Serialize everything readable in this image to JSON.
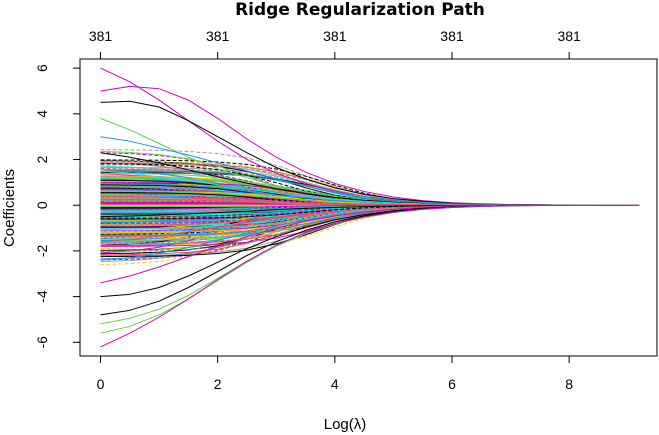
{
  "chart_data": {
    "type": "line",
    "title": "Ridge Regularization Path",
    "xlabel": "Log(λ)",
    "ylabel": "Coefficients",
    "xlim": [
      -0.35,
      9.5
    ],
    "ylim": [
      -6.6,
      6.4
    ],
    "x_ticks": [
      0,
      2,
      4,
      6,
      8
    ],
    "x_tick_labels": [
      "0",
      "2",
      "4",
      "6",
      "8"
    ],
    "y_ticks": [
      -6,
      -4,
      -2,
      0,
      2,
      4,
      6
    ],
    "y_tick_labels": [
      "-6",
      "-4",
      "-2",
      "0",
      "2",
      "4",
      "6"
    ],
    "top_axis_ticks": [
      0,
      2,
      4,
      6,
      8
    ],
    "top_axis_labels": [
      "381",
      "381",
      "381",
      "381",
      "381"
    ],
    "x": [
      0.0,
      0.5,
      1.0,
      1.5,
      2.0,
      2.5,
      3.0,
      3.5,
      4.0,
      4.5,
      5.0,
      5.5,
      6.0,
      6.5,
      7.0,
      7.5,
      8.0,
      8.5,
      9.2
    ],
    "series_count": 381,
    "series_colors": [
      "#000000",
      "#df536b",
      "#61d04f",
      "#2297e6",
      "#28e2e5",
      "#cd0bbc",
      "#f5c710",
      "#9e9e9e"
    ],
    "series": [
      {
        "values": [
          6.0,
          5.4,
          4.6,
          3.7,
          2.8,
          2.0,
          1.4,
          0.95,
          0.62,
          0.38,
          0.22,
          0.12,
          0.06,
          0.03,
          0.015,
          0.008,
          0.004,
          0.002,
          0.0
        ],
        "color": "#cd0bbc"
      },
      {
        "values": [
          5.0,
          5.2,
          5.1,
          4.6,
          3.8,
          2.9,
          2.1,
          1.45,
          0.95,
          0.6,
          0.36,
          0.2,
          0.11,
          0.06,
          0.03,
          0.015,
          0.007,
          0.003,
          0.0
        ],
        "color": "#cd0bbc"
      },
      {
        "values": [
          4.5,
          4.55,
          4.3,
          3.7,
          3.0,
          2.3,
          1.65,
          1.15,
          0.76,
          0.48,
          0.29,
          0.17,
          0.09,
          0.05,
          0.025,
          0.012,
          0.006,
          0.003,
          0.0
        ],
        "color": "#000000"
      },
      {
        "values": [
          3.8,
          3.3,
          2.7,
          2.1,
          1.6,
          1.2,
          0.85,
          0.58,
          0.38,
          0.24,
          0.14,
          0.08,
          0.045,
          0.024,
          0.012,
          0.006,
          0.003,
          0.001,
          0.0
        ],
        "color": "#61d04f"
      },
      {
        "values": [
          3.0,
          2.8,
          2.5,
          2.2,
          1.85,
          1.5,
          1.15,
          0.84,
          0.58,
          0.38,
          0.23,
          0.13,
          0.07,
          0.038,
          0.02,
          0.01,
          0.005,
          0.002,
          0.0
        ],
        "color": "#2297e6"
      },
      {
        "values": [
          2.3,
          2.1,
          1.85,
          1.55,
          1.25,
          0.97,
          0.72,
          0.51,
          0.34,
          0.22,
          0.13,
          0.075,
          0.04,
          0.021,
          0.011,
          0.005,
          0.002,
          0.001,
          0.0
        ],
        "color": "#000000"
      },
      {
        "values": [
          1.5,
          1.4,
          1.25,
          1.08,
          0.9,
          0.71,
          0.53,
          0.38,
          0.26,
          0.17,
          0.1,
          0.058,
          0.032,
          0.017,
          0.009,
          0.004,
          0.002,
          0.001,
          0.0
        ],
        "color": "#28e2e5"
      },
      {
        "values": [
          0.4,
          0.38,
          0.35,
          0.31,
          0.26,
          0.21,
          0.16,
          0.11,
          0.078,
          0.05,
          0.03,
          0.018,
          0.01,
          0.005,
          0.003,
          0.001,
          0.0,
          0.0,
          0.0
        ],
        "color": "#df536b"
      },
      {
        "values": [
          -0.5,
          -0.47,
          -0.43,
          -0.38,
          -0.32,
          -0.26,
          -0.19,
          -0.14,
          -0.095,
          -0.062,
          -0.038,
          -0.022,
          -0.012,
          -0.006,
          -0.003,
          -0.001,
          0.0,
          0.0,
          0.0
        ],
        "color": "#000000"
      },
      {
        "values": [
          -1.6,
          -1.5,
          -1.35,
          -1.17,
          -0.97,
          -0.76,
          -0.57,
          -0.41,
          -0.28,
          -0.18,
          -0.11,
          -0.063,
          -0.035,
          -0.018,
          -0.009,
          -0.004,
          -0.002,
          -0.001,
          0.0
        ],
        "color": "#df536b"
      },
      {
        "values": [
          -2.4,
          -2.3,
          -2.1,
          -1.85,
          -1.55,
          -1.22,
          -0.91,
          -0.65,
          -0.44,
          -0.28,
          -0.17,
          -0.098,
          -0.054,
          -0.029,
          -0.015,
          -0.007,
          -0.003,
          -0.001,
          0.0
        ],
        "color": "#2297e6"
      },
      {
        "values": [
          -3.4,
          -3.1,
          -2.7,
          -2.25,
          -1.8,
          -1.38,
          -1.0,
          -0.7,
          -0.47,
          -0.3,
          -0.18,
          -0.104,
          -0.057,
          -0.03,
          -0.015,
          -0.007,
          -0.003,
          -0.001,
          0.0
        ],
        "color": "#cd0bbc"
      },
      {
        "values": [
          -4.0,
          -3.9,
          -3.6,
          -3.1,
          -2.5,
          -1.9,
          -1.38,
          -0.96,
          -0.64,
          -0.41,
          -0.25,
          -0.14,
          -0.078,
          -0.041,
          -0.02,
          -0.01,
          -0.004,
          -0.002,
          0.0
        ],
        "color": "#000000"
      },
      {
        "values": [
          -4.8,
          -4.6,
          -4.2,
          -3.6,
          -2.9,
          -2.2,
          -1.6,
          -1.1,
          -0.73,
          -0.46,
          -0.28,
          -0.16,
          -0.088,
          -0.046,
          -0.023,
          -0.011,
          -0.005,
          -0.002,
          0.0
        ],
        "color": "#000000"
      },
      {
        "values": [
          -5.2,
          -4.95,
          -4.55,
          -3.95,
          -3.2,
          -2.45,
          -1.78,
          -1.24,
          -0.83,
          -0.53,
          -0.32,
          -0.185,
          -0.1,
          -0.053,
          -0.027,
          -0.013,
          -0.006,
          -0.002,
          0.0
        ],
        "color": "#61d04f"
      },
      {
        "values": [
          -5.6,
          -5.3,
          -4.8,
          -4.1,
          -3.3,
          -2.5,
          -1.8,
          -1.25,
          -0.83,
          -0.53,
          -0.32,
          -0.185,
          -0.1,
          -0.053,
          -0.027,
          -0.013,
          -0.006,
          -0.002,
          0.0
        ],
        "color": "#61d04f"
      },
      {
        "values": [
          -6.2,
          -5.6,
          -4.9,
          -4.1,
          -3.25,
          -2.45,
          -1.75,
          -1.2,
          -0.8,
          -0.51,
          -0.31,
          -0.18,
          -0.098,
          -0.052,
          -0.026,
          -0.012,
          -0.006,
          -0.002,
          0.0
        ],
        "color": "#cd0bbc"
      }
    ],
    "grid": false,
    "legend": "none"
  }
}
